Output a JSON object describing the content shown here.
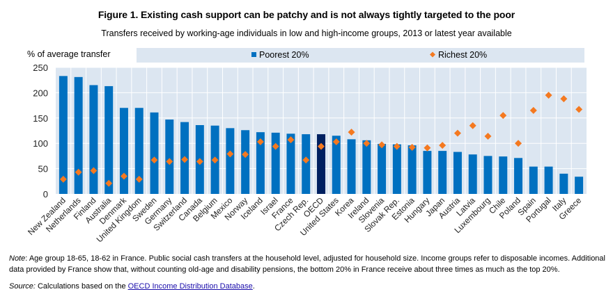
{
  "figure": {
    "title": "Figure 1. Existing cash support can be patchy and is not always tightly targeted to the poor",
    "subtitle": "Transfers received by working-age individuals in low and high-income groups, 2013 or latest year available"
  },
  "colors": {
    "bar": "#0070C0",
    "bar_highlight": "#002060",
    "marker": "#F47920",
    "plot_bg": "#DCE6F1",
    "grid": "#FFFFFF"
  },
  "chart_data": {
    "type": "bar",
    "title": "Figure 1. Existing cash support can be patchy and is not always tightly targeted to the poor",
    "subtitle": "Transfers received by working-age individuals in low and high-income groups, 2013 or latest year available",
    "xlabel": "",
    "ylabel": "% of average transfer",
    "ylim": [
      0,
      250
    ],
    "yticks": [
      0,
      50,
      100,
      150,
      200,
      250
    ],
    "grid": true,
    "legend_position": "top",
    "highlight_category": "OECD",
    "categories": [
      "New Zealand",
      "Netherlands",
      "Finland",
      "Australia",
      "Denmark",
      "United Kingdom",
      "Sweden",
      "Germany",
      "Switzerland",
      "Canada",
      "Belgium",
      "Mexico",
      "Norway",
      "Iceland",
      "Israel",
      "France",
      "Czech Rep.",
      "OECD",
      "United States",
      "Korea",
      "Ireland",
      "Slovenia",
      "Slovak Rep.",
      "Estonia",
      "Hungary",
      "Japan",
      "Austria",
      "Latvia",
      "Luxembourg",
      "Chile",
      "Poland",
      "Spain",
      "Portugal",
      "Italy",
      "Greece"
    ],
    "series": [
      {
        "name": "Poorest 20%",
        "type": "bar",
        "values": [
          233,
          231,
          215,
          213,
          170,
          170,
          161,
          147,
          142,
          136,
          135,
          130,
          126,
          122,
          121,
          119,
          118,
          118,
          115,
          108,
          106,
          99,
          98,
          96,
          85,
          85,
          83,
          78,
          75,
          74,
          71,
          54,
          54,
          40,
          34
        ]
      },
      {
        "name": "Richest 20%",
        "type": "marker-diamond",
        "values": [
          29,
          43,
          46,
          21,
          35,
          29,
          67,
          64,
          68,
          64,
          67,
          79,
          78,
          103,
          94,
          107,
          67,
          94,
          103,
          122,
          100,
          97,
          94,
          92,
          91,
          96,
          120,
          135,
          114,
          155,
          100,
          165,
          195,
          188,
          167
        ]
      }
    ]
  },
  "notes": {
    "note_label": "Note",
    "note_text": ": Age group 18-65, 18-62 in France. Public social cash transfers at the household level, adjusted for household size. Income groups refer to disposable incomes. Additional data provided by France show that, without counting old-age and disability pensions, the bottom 20% in France receive about three times as much as the top 20%.",
    "source_label": "Source:",
    "source_text": " Calculations based on the ",
    "source_link": "OECD Income Distribution Database",
    "source_end": "."
  }
}
